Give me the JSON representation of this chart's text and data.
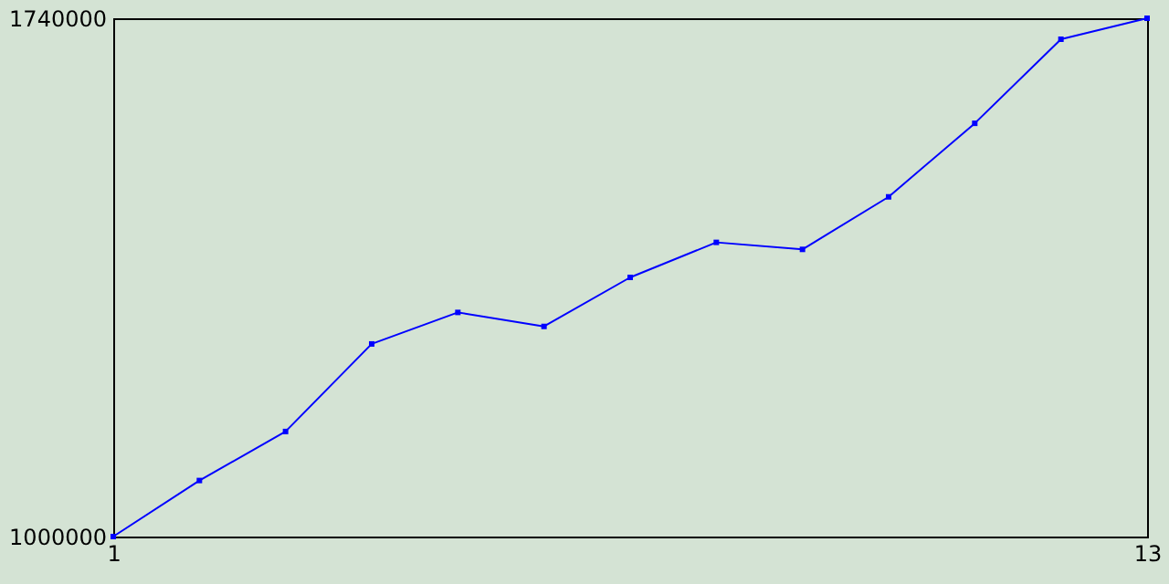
{
  "chart_data": {
    "type": "line",
    "x": [
      1,
      2,
      3,
      4,
      5,
      6,
      7,
      8,
      9,
      10,
      11,
      12,
      13
    ],
    "series": [
      {
        "color": "#0000ff",
        "values": [
          1000000,
          1080000,
          1150000,
          1275000,
          1320000,
          1300000,
          1370000,
          1420000,
          1410000,
          1485000,
          1590000,
          1710000,
          1740000
        ]
      }
    ],
    "xlim": [
      1,
      13
    ],
    "xticks": [
      1,
      13
    ],
    "ylim": [
      1000000,
      1740000
    ],
    "yticks": [
      1000000,
      1740000
    ],
    "grid": false,
    "marker": "square",
    "line_style": "solid"
  }
}
